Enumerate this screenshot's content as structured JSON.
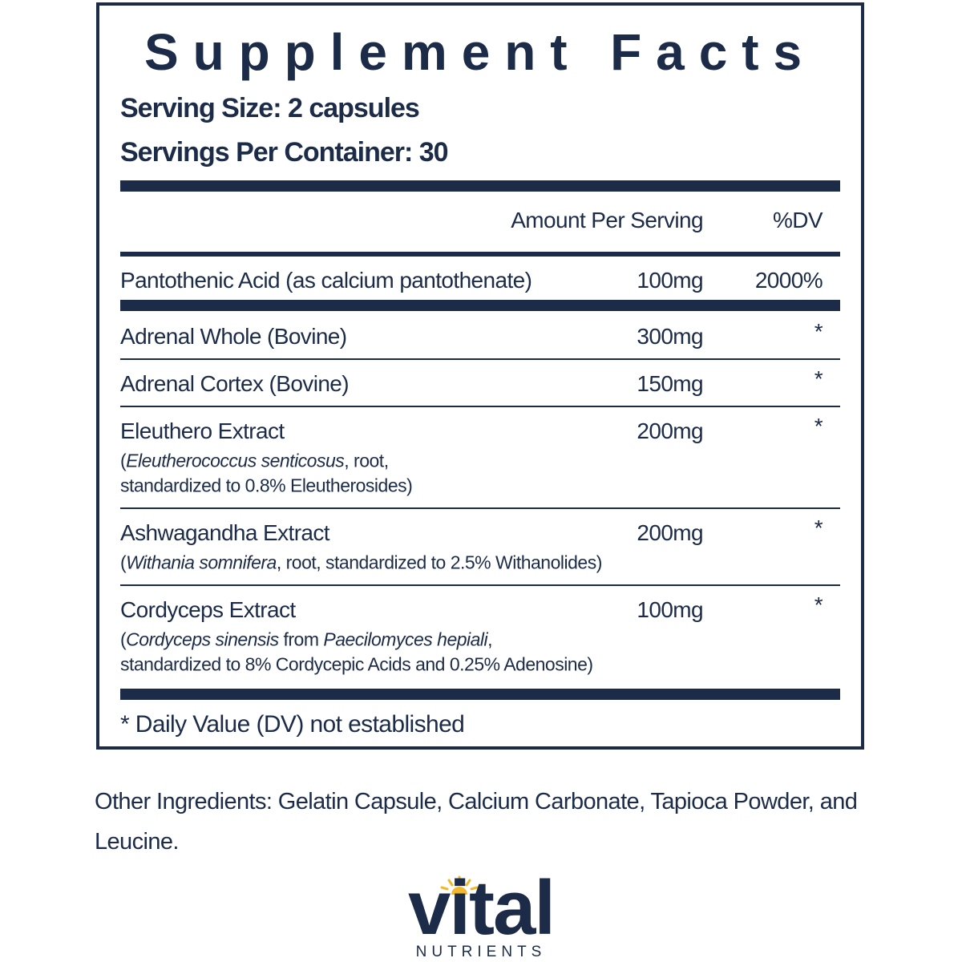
{
  "panel": {
    "title": "Supplement Facts",
    "serving_size": "Serving Size: 2 capsules",
    "servings_per_container": "Servings Per Container: 30",
    "header": {
      "amount": "Amount Per Serving",
      "dv": "%DV"
    },
    "nutrients": [
      {
        "name": "Pantothenic Acid (as calcium pantothenate)",
        "amount": "100mg",
        "dv": "2000%"
      }
    ],
    "ingredients": [
      {
        "name": "Adrenal Whole (Bovine)",
        "amount": "300mg",
        "dv": "*"
      },
      {
        "name": "Adrenal Cortex (Bovine)",
        "amount": "150mg",
        "dv": "*"
      },
      {
        "name": "Eleuthero Extract",
        "amount": "200mg",
        "dv": "*",
        "detail_lines": [
          [
            {
              "text": "(",
              "italic": false
            },
            {
              "text": "Eleutherococcus senticosus",
              "italic": true
            },
            {
              "text": ", root,",
              "italic": false
            }
          ],
          [
            {
              "text": "standardized to 0.8% Eleutherosides)",
              "italic": false
            }
          ]
        ]
      },
      {
        "name": "Ashwagandha Extract",
        "amount": "200mg",
        "dv": "*",
        "detail_lines": [
          [
            {
              "text": "(",
              "italic": false
            },
            {
              "text": "Withania somnifera",
              "italic": true
            },
            {
              "text": ", root, standardized to 2.5% Withanolides)",
              "italic": false
            }
          ]
        ]
      },
      {
        "name": "Cordyceps Extract",
        "amount": "100mg",
        "dv": "*",
        "detail_lines": [
          [
            {
              "text": "(",
              "italic": false
            },
            {
              "text": "Cordyceps sinensis",
              "italic": true
            },
            {
              "text": " from ",
              "italic": false
            },
            {
              "text": "Paecilomyces hepiali",
              "italic": true
            },
            {
              "text": ",",
              "italic": false
            }
          ],
          [
            {
              "text": "standardized to 8% Cordycepic Acids and 0.25% Adenosine)",
              "italic": false
            }
          ]
        ]
      }
    ],
    "footnote": "* Daily Value (DV) not established"
  },
  "other_ingredients": "Other Ingredients: Gelatin Capsule, Calcium Carbonate, Tapioca Powder, and Leucine.",
  "logo": {
    "name": "vital",
    "tagline": "NUTRIENTS"
  }
}
